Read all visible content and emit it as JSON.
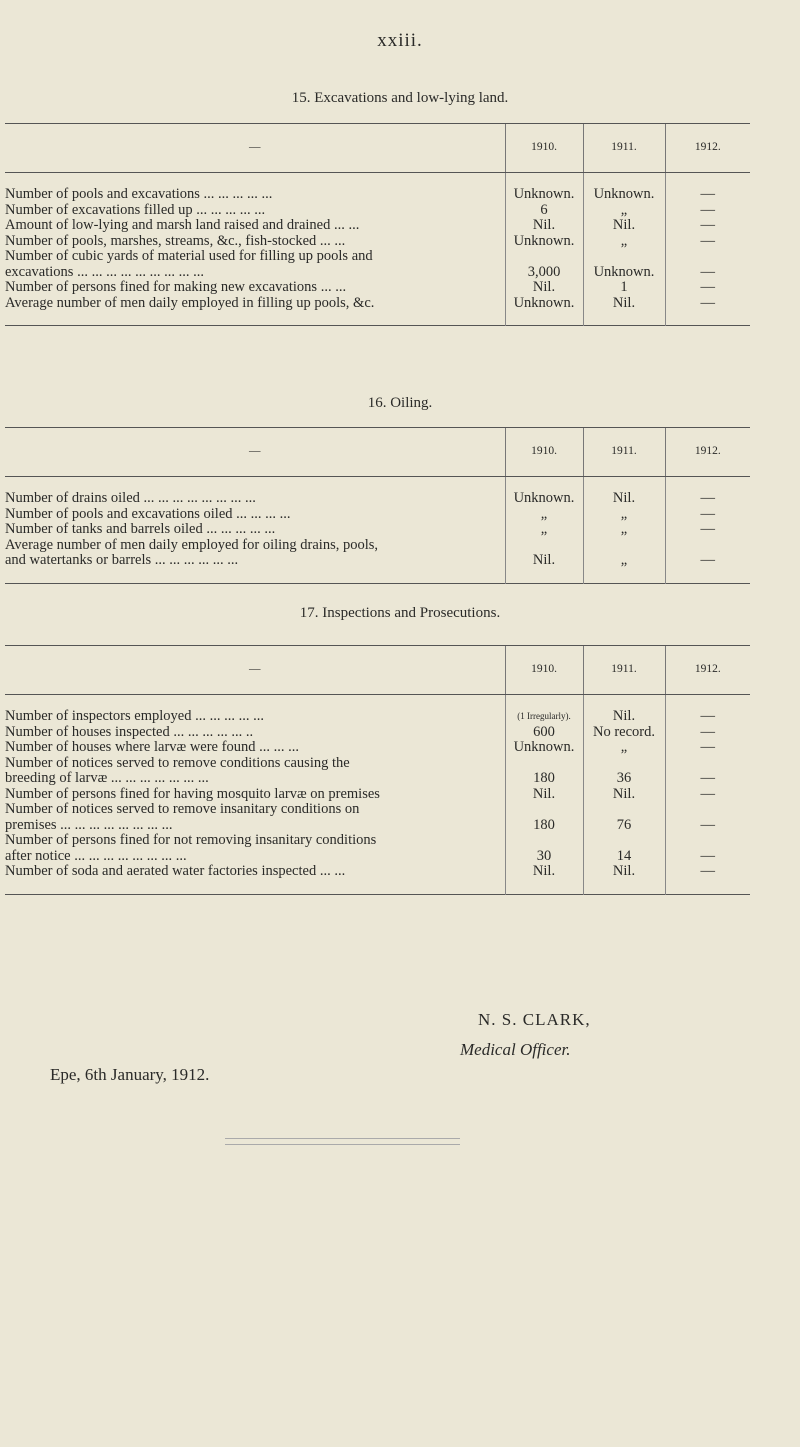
{
  "page_number": "xxiii.",
  "tables": [
    {
      "title": "15. Excavations and low-lying land.",
      "headers": [
        "—",
        "1910.",
        "1911.",
        "1912."
      ],
      "rows": [
        {
          "label": "Number of pools and excavations",
          "dots": "... ... ... ... ...",
          "v": [
            "Unknown.",
            "Unknown.",
            "—"
          ]
        },
        {
          "label": "Number of excavations filled up",
          "dots": "... ... ... ... ...",
          "v": [
            "6",
            "„",
            "—"
          ]
        },
        {
          "label": "Amount of low-lying and marsh land raised and drained ...",
          "dots": "...",
          "v": [
            "Nil.",
            "Nil.",
            "—"
          ]
        },
        {
          "label": "Number of pools, marshes, streams, &c., fish-stocked",
          "dots": "... ...",
          "v": [
            "Unknown.",
            "„",
            "—"
          ]
        },
        {
          "label": "Number of cubic yards of material used for filling up pools and",
          "dots": "",
          "v": [
            "",
            "",
            ""
          ]
        },
        {
          "label": "excavations ...",
          "dots": "... ... ... ... ... ... ... ...",
          "indent": true,
          "v": [
            "3,000",
            "Unknown.",
            "—"
          ]
        },
        {
          "label": "Number of persons fined for making new excavations",
          "dots": "... ...",
          "v": [
            "Nil.",
            "1",
            "—"
          ]
        },
        {
          "label": "Average number of men daily employed in filling up pools, &c.",
          "dots": "",
          "v": [
            "Unknown.",
            "Nil.",
            "—"
          ]
        }
      ]
    },
    {
      "title": "16. Oiling.",
      "headers": [
        "—",
        "1910.",
        "1911.",
        "1912."
      ],
      "rows": [
        {
          "label": "Number of drains oiled ...",
          "dots": "... ... ... ... ... ... ...",
          "v": [
            "Unknown.",
            "Nil.",
            "—"
          ]
        },
        {
          "label": "Number of pools and excavations oiled",
          "dots": "... ... ... ...",
          "v": [
            "„",
            "„",
            "—"
          ]
        },
        {
          "label": "Number of tanks and barrels oiled",
          "dots": "... ... ... ... ...",
          "v": [
            "„",
            "„",
            "—"
          ]
        },
        {
          "label": "Average number of men daily employed for oiling drains, pools,",
          "dots": "",
          "v": [
            "",
            "",
            ""
          ]
        },
        {
          "label": "and watertanks or barrels ...",
          "dots": "... ... ... ... ...",
          "indent": true,
          "v": [
            "Nil.",
            "„",
            "—"
          ]
        }
      ]
    },
    {
      "title": "17. Inspections and Prosecutions.",
      "headers": [
        "—",
        "1910.",
        "1911.",
        "1912."
      ],
      "rows": [
        {
          "label": "Number of inspectors employed",
          "dots": "... ... ... ... ...",
          "v": [
            "(1 Irregularly).",
            "Nil.",
            "—"
          ],
          "small0": true
        },
        {
          "label": "Number of houses inspected ...",
          "dots": "... ... ... ... ..",
          "v": [
            "600",
            "No record.",
            "—"
          ]
        },
        {
          "label": "Number of houses where larvæ were found",
          "dots": "... ... ...",
          "v": [
            "Unknown.",
            "„",
            "—"
          ]
        },
        {
          "label": "Number of notices served to remove conditions causing the",
          "dots": "",
          "v": [
            "",
            "",
            ""
          ]
        },
        {
          "label": "breeding of larvæ ...",
          "dots": "... ... ... ... ... ...",
          "indent": true,
          "v": [
            "180",
            "36",
            "—"
          ]
        },
        {
          "label": "Number of persons fined for having mosquito larvæ on premises",
          "dots": "",
          "v": [
            "Nil.",
            "Nil.",
            "—"
          ]
        },
        {
          "label": "Number of notices served to remove insanitary conditions on",
          "dots": "",
          "v": [
            "",
            "",
            ""
          ]
        },
        {
          "label": "premises",
          "dots": "... ... ... ... ... ... ... ...",
          "indent": true,
          "v": [
            "180",
            "76",
            "—"
          ]
        },
        {
          "label": "Number of persons fined for not removing insanitary conditions",
          "dots": "",
          "v": [
            "",
            "",
            ""
          ]
        },
        {
          "label": "after notice ...",
          "dots": "... ... ... ... ... ... ...",
          "indent": true,
          "v": [
            "30",
            "14",
            "—"
          ]
        },
        {
          "label": "Number of soda and aerated water factories inspected ...",
          "dots": "...",
          "v": [
            "Nil.",
            "Nil.",
            "—"
          ]
        }
      ]
    }
  ],
  "signature": {
    "name": "N. S. CLARK,",
    "title": "Medical Officer.",
    "place_date": "Epe, 6th January, 1912."
  }
}
